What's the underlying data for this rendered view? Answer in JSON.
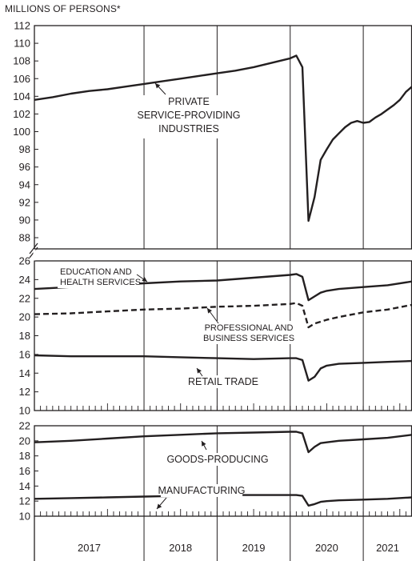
{
  "unit_label": "MILLIONS OF PERSONS*",
  "chart_data": {
    "type": "line",
    "unit_label": "MILLIONS OF PERSONS*",
    "years": [
      "2017",
      "2018",
      "2019",
      "2020",
      "2021"
    ],
    "x_range": [
      "2016-07",
      "2021-09"
    ],
    "panels": [
      {
        "name": "top",
        "ylim": [
          88,
          112
        ],
        "yticks": [
          88,
          90,
          92,
          94,
          96,
          98,
          100,
          102,
          104,
          106,
          108,
          110,
          112
        ],
        "axis_break_at_bottom": true,
        "series": [
          {
            "label_lines": [
              "PRIVATE",
              "SERVICE-PROVIDING",
              "INDUSTRIES"
            ],
            "style": "solid",
            "points": [
              [
                "2016-07",
                103.6
              ],
              [
                "2016-10",
                103.9
              ],
              [
                "2017-01",
                104.3
              ],
              [
                "2017-04",
                104.6
              ],
              [
                "2017-07",
                104.8
              ],
              [
                "2017-10",
                105.1
              ],
              [
                "2018-01",
                105.4
              ],
              [
                "2018-04",
                105.7
              ],
              [
                "2018-07",
                106.0
              ],
              [
                "2018-10",
                106.3
              ],
              [
                "2019-01",
                106.6
              ],
              [
                "2019-04",
                106.9
              ],
              [
                "2019-07",
                107.3
              ],
              [
                "2019-10",
                107.8
              ],
              [
                "2020-01",
                108.3
              ],
              [
                "2020-02",
                108.6
              ],
              [
                "2020-03",
                107.3
              ],
              [
                "2020-04",
                89.9
              ],
              [
                "2020-05",
                92.6
              ],
              [
                "2020-06",
                96.8
              ],
              [
                "2020-07",
                98.0
              ],
              [
                "2020-08",
                99.1
              ],
              [
                "2020-09",
                99.8
              ],
              [
                "2020-10",
                100.5
              ],
              [
                "2020-11",
                101.0
              ],
              [
                "2020-12",
                101.2
              ],
              [
                "2021-01",
                101.0
              ],
              [
                "2021-02",
                101.1
              ],
              [
                "2021-03",
                101.6
              ],
              [
                "2021-04",
                102.0
              ],
              [
                "2021-05",
                102.5
              ],
              [
                "2021-06",
                103.0
              ],
              [
                "2021-07",
                103.6
              ],
              [
                "2021-08",
                104.5
              ],
              [
                "2021-09",
                105.1
              ]
            ]
          }
        ]
      },
      {
        "name": "middle",
        "ylim": [
          10,
          26
        ],
        "yticks": [
          10,
          12,
          14,
          16,
          18,
          20,
          22,
          24,
          26
        ],
        "series": [
          {
            "label_lines": [
              "EDUCATION AND",
              "HEALTH SERVICES"
            ],
            "style": "solid",
            "points": [
              [
                "2016-07",
                23.0
              ],
              [
                "2017-01",
                23.2
              ],
              [
                "2017-07",
                23.4
              ],
              [
                "2018-01",
                23.6
              ],
              [
                "2018-07",
                23.8
              ],
              [
                "2019-01",
                23.9
              ],
              [
                "2019-07",
                24.2
              ],
              [
                "2020-01",
                24.5
              ],
              [
                "2020-02",
                24.6
              ],
              [
                "2020-03",
                24.3
              ],
              [
                "2020-04",
                21.8
              ],
              [
                "2020-05",
                22.2
              ],
              [
                "2020-06",
                22.6
              ],
              [
                "2020-07",
                22.8
              ],
              [
                "2020-09",
                23.0
              ],
              [
                "2021-01",
                23.2
              ],
              [
                "2021-05",
                23.4
              ],
              [
                "2021-09",
                23.8
              ]
            ]
          },
          {
            "label_lines": [
              "PROFESSIONAL AND",
              "BUSINESS SERVICES"
            ],
            "style": "dashed",
            "points": [
              [
                "2016-07",
                20.3
              ],
              [
                "2017-01",
                20.4
              ],
              [
                "2017-07",
                20.6
              ],
              [
                "2018-01",
                20.8
              ],
              [
                "2018-07",
                20.9
              ],
              [
                "2019-01",
                21.1
              ],
              [
                "2019-07",
                21.2
              ],
              [
                "2020-01",
                21.4
              ],
              [
                "2020-02",
                21.5
              ],
              [
                "2020-03",
                21.2
              ],
              [
                "2020-04",
                18.9
              ],
              [
                "2020-05",
                19.3
              ],
              [
                "2020-06",
                19.5
              ],
              [
                "2020-07",
                19.7
              ],
              [
                "2020-09",
                20.0
              ],
              [
                "2021-01",
                20.5
              ],
              [
                "2021-05",
                20.8
              ],
              [
                "2021-09",
                21.3
              ]
            ]
          },
          {
            "label_lines": [
              "RETAIL TRADE"
            ],
            "style": "solid",
            "points": [
              [
                "2016-07",
                15.9
              ],
              [
                "2017-01",
                15.8
              ],
              [
                "2017-07",
                15.8
              ],
              [
                "2018-01",
                15.8
              ],
              [
                "2018-07",
                15.7
              ],
              [
                "2019-01",
                15.6
              ],
              [
                "2019-07",
                15.5
              ],
              [
                "2020-01",
                15.6
              ],
              [
                "2020-02",
                15.6
              ],
              [
                "2020-03",
                15.4
              ],
              [
                "2020-04",
                13.2
              ],
              [
                "2020-05",
                13.6
              ],
              [
                "2020-06",
                14.5
              ],
              [
                "2020-07",
                14.8
              ],
              [
                "2020-09",
                15.0
              ],
              [
                "2021-01",
                15.1
              ],
              [
                "2021-05",
                15.2
              ],
              [
                "2021-09",
                15.3
              ]
            ]
          }
        ]
      },
      {
        "name": "bottom",
        "ylim": [
          10,
          22
        ],
        "yticks": [
          10,
          12,
          14,
          16,
          18,
          20,
          22
        ],
        "series": [
          {
            "label_lines": [
              "GOODS-PRODUCING"
            ],
            "style": "solid",
            "points": [
              [
                "2016-07",
                19.8
              ],
              [
                "2017-01",
                20.0
              ],
              [
                "2017-07",
                20.3
              ],
              [
                "2018-01",
                20.6
              ],
              [
                "2018-07",
                20.8
              ],
              [
                "2019-01",
                21.0
              ],
              [
                "2019-07",
                21.1
              ],
              [
                "2020-01",
                21.2
              ],
              [
                "2020-02",
                21.2
              ],
              [
                "2020-03",
                21.0
              ],
              [
                "2020-04",
                18.5
              ],
              [
                "2020-05",
                19.2
              ],
              [
                "2020-06",
                19.7
              ],
              [
                "2020-07",
                19.8
              ],
              [
                "2020-09",
                20.0
              ],
              [
                "2021-01",
                20.2
              ],
              [
                "2021-05",
                20.4
              ],
              [
                "2021-09",
                20.8
              ]
            ]
          },
          {
            "label_lines": [
              "MANUFACTURING"
            ],
            "style": "solid",
            "points": [
              [
                "2016-07",
                12.3
              ],
              [
                "2017-01",
                12.4
              ],
              [
                "2017-07",
                12.5
              ],
              [
                "2018-01",
                12.6
              ],
              [
                "2018-07",
                12.7
              ],
              [
                "2019-01",
                12.8
              ],
              [
                "2019-07",
                12.8
              ],
              [
                "2020-01",
                12.8
              ],
              [
                "2020-02",
                12.8
              ],
              [
                "2020-03",
                12.7
              ],
              [
                "2020-04",
                11.4
              ],
              [
                "2020-05",
                11.6
              ],
              [
                "2020-06",
                11.9
              ],
              [
                "2020-07",
                12.0
              ],
              [
                "2020-09",
                12.1
              ],
              [
                "2021-01",
                12.2
              ],
              [
                "2021-05",
                12.3
              ],
              [
                "2021-09",
                12.5
              ]
            ]
          }
        ]
      }
    ]
  }
}
